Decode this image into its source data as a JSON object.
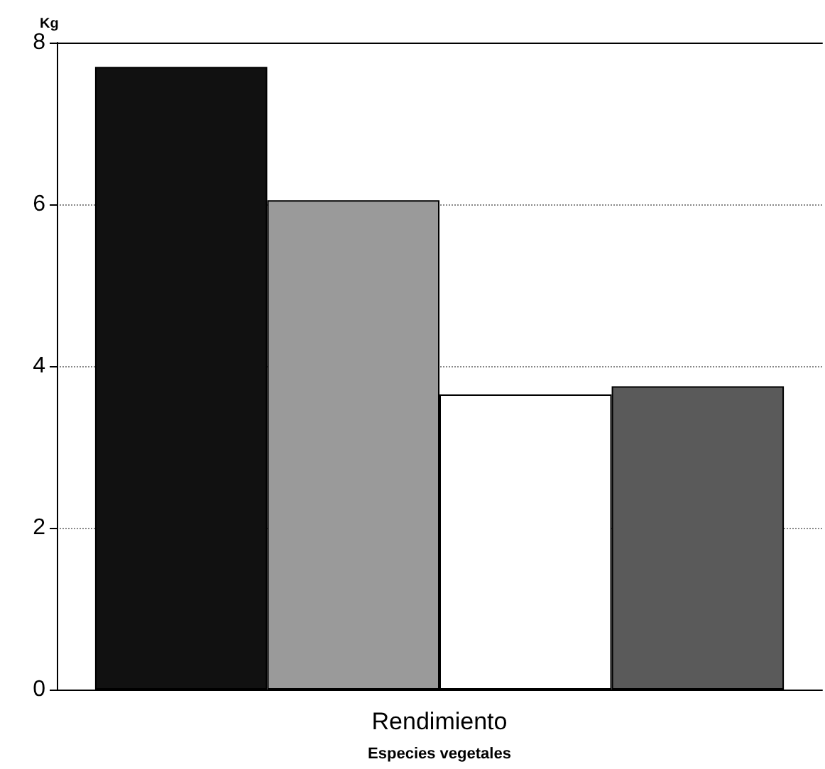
{
  "chart_data": {
    "type": "bar",
    "ylabel": "Kg",
    "xlabel": "Especies vegetales",
    "categories": [
      "Rendimiento"
    ],
    "series": [
      {
        "color": "#111111",
        "values": [
          7.7
        ]
      },
      {
        "color": "#9a9a9a",
        "values": [
          6.05
        ]
      },
      {
        "color": "#ffffff",
        "values": [
          3.65
        ]
      },
      {
        "color": "#5a5a5a",
        "values": [
          3.75
        ]
      }
    ],
    "ylim": [
      0,
      8
    ],
    "yticks": [
      0,
      2,
      4,
      6,
      8
    ],
    "grid": "y"
  }
}
